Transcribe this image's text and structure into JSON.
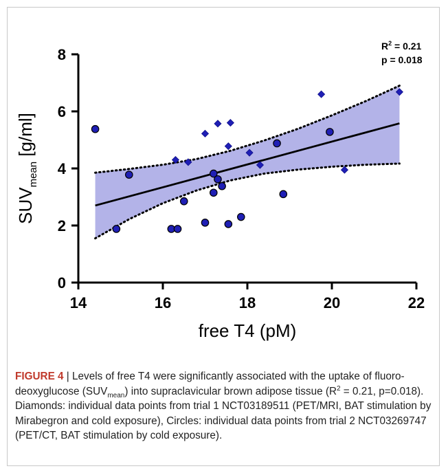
{
  "chart_data": {
    "type": "scatter",
    "xlabel": "free T4 (pM)",
    "ylabel_main": "SUV",
    "ylabel_sub": "mean",
    "ylabel_unit": " [g/ml]",
    "xlim": [
      14,
      22
    ],
    "ylim": [
      0,
      8
    ],
    "xticks": [
      "14",
      "16",
      "18",
      "20",
      "22"
    ],
    "yticks": [
      "0",
      "2",
      "4",
      "6",
      "8"
    ],
    "annotation_r2_label": "R",
    "annotation_r2_sup": "2",
    "annotation_r2_value": " = 0.21",
    "annotation_p": "p = 0.018",
    "grid": false,
    "colors": {
      "marker": "#1f1fb5",
      "band": "#b3b3e8",
      "line": "#000000"
    },
    "regression": {
      "x": [
        14.4,
        21.6
      ],
      "y": [
        2.7,
        5.58
      ]
    },
    "confidence_band": {
      "x": [
        14.4,
        15.2,
        16.0,
        16.8,
        17.6,
        18.4,
        19.2,
        20.0,
        20.8,
        21.6
      ],
      "upper": [
        3.85,
        3.98,
        4.13,
        4.33,
        4.62,
        4.98,
        5.39,
        5.86,
        6.36,
        6.9
      ],
      "lower": [
        1.55,
        2.22,
        2.78,
        3.23,
        3.58,
        3.82,
        3.96,
        4.06,
        4.13,
        4.17
      ]
    },
    "series": [
      {
        "marker": "diamond",
        "x": [
          16.3,
          16.6,
          17.0,
          17.3,
          17.55,
          17.6,
          18.05,
          18.3,
          19.75,
          20.3,
          21.6
        ],
        "y": [
          4.3,
          4.22,
          5.22,
          5.57,
          4.78,
          5.6,
          4.55,
          4.12,
          6.6,
          3.95,
          6.68
        ]
      },
      {
        "marker": "circle",
        "x": [
          14.4,
          14.9,
          15.2,
          16.2,
          16.35,
          16.5,
          17.0,
          17.2,
          17.2,
          17.3,
          17.4,
          17.55,
          17.85,
          18.7,
          18.85,
          19.95
        ],
        "y": [
          5.38,
          1.88,
          3.78,
          1.88,
          1.88,
          2.85,
          2.1,
          3.82,
          3.15,
          3.62,
          3.38,
          2.05,
          2.3,
          4.88,
          3.1,
          5.28
        ]
      }
    ]
  },
  "caption": {
    "label": "FIGURE 4",
    "sep": " | ",
    "t1": "Levels of free T4 were significantly associated with the uptake of fluoro-deoxyglucose (SUV",
    "t1_sub": "mean",
    "t2": ") into supraclavicular brown adipose tissue (R",
    "t2_sup": "2",
    "t3": " = 0.21, p=0.018). Diamonds: individual data points from trial 1 NCT03189511 (PET/MRI, BAT stimulation by Mirabegron and cold exposure), Circles: individual data points from trial 2 NCT03269747 (PET/CT, BAT stimulation by cold exposure)."
  }
}
